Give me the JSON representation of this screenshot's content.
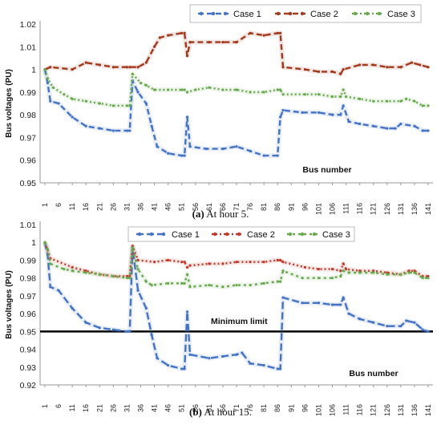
{
  "chart_data": [
    {
      "type": "line",
      "ylabel": "Bus voltages (PU)",
      "xlabel": "Bus number",
      "ylim": [
        0.95,
        1.02
      ],
      "yticks": [
        "0.95",
        "0.96",
        "0.97",
        "0.98",
        "0.99",
        "1",
        "1.01",
        "1.02"
      ],
      "xlim": [
        1,
        141
      ],
      "xticks": [
        "1",
        "6",
        "11",
        "16",
        "21",
        "26",
        "31",
        "36",
        "41",
        "46",
        "51",
        "56",
        "61",
        "66",
        "71",
        "76",
        "81",
        "86",
        "91",
        "96",
        "101",
        "106",
        "111",
        "116",
        "121",
        "126",
        "131",
        "136",
        "141"
      ],
      "grid": false,
      "legend": "top",
      "caption_prefix": "(a)",
      "caption_text": " At hour 5.",
      "series": [
        {
          "name": "Case 1",
          "color": "#4472c4",
          "dash": "7,4",
          "points": [
            [
              1,
              1.0
            ],
            [
              2,
              0.994
            ],
            [
              3,
              0.986
            ],
            [
              6,
              0.985
            ],
            [
              11,
              0.979
            ],
            [
              16,
              0.975
            ],
            [
              21,
              0.974
            ],
            [
              26,
              0.973
            ],
            [
              31,
              0.973
            ],
            [
              32,
              0.973
            ],
            [
              33,
              0.995
            ],
            [
              35,
              0.99
            ],
            [
              38,
              0.985
            ],
            [
              40,
              0.975
            ],
            [
              42,
              0.966
            ],
            [
              46,
              0.963
            ],
            [
              51,
              0.962
            ],
            [
              52,
              0.962
            ],
            [
              53,
              0.979
            ],
            [
              54,
              0.966
            ],
            [
              60,
              0.965
            ],
            [
              66,
              0.965
            ],
            [
              71,
              0.966
            ],
            [
              76,
              0.964
            ],
            [
              81,
              0.962
            ],
            [
              86,
              0.962
            ],
            [
              87,
              0.979
            ],
            [
              88,
              0.982
            ],
            [
              95,
              0.981
            ],
            [
              101,
              0.981
            ],
            [
              106,
              0.98
            ],
            [
              109,
              0.98
            ],
            [
              110,
              0.984
            ],
            [
              112,
              0.977
            ],
            [
              116,
              0.976
            ],
            [
              121,
              0.975
            ],
            [
              126,
              0.974
            ],
            [
              129,
              0.974
            ],
            [
              131,
              0.976
            ],
            [
              136,
              0.975
            ],
            [
              139,
              0.973
            ],
            [
              141,
              0.973
            ]
          ]
        },
        {
          "name": "Case 2",
          "color": "#a0391e",
          "dash": "7,4",
          "points": [
            [
              1,
              1.0
            ],
            [
              3,
              1.001
            ],
            [
              11,
              1.0
            ],
            [
              16,
              1.003
            ],
            [
              21,
              1.002
            ],
            [
              26,
              1.001
            ],
            [
              31,
              1.001
            ],
            [
              32,
              1.001
            ],
            [
              35,
              1.001
            ],
            [
              38,
              1.003
            ],
            [
              41,
              1.01
            ],
            [
              43,
              1.014
            ],
            [
              46,
              1.015
            ],
            [
              51,
              1.016
            ],
            [
              52,
              1.016
            ],
            [
              53,
              1.006
            ],
            [
              54,
              1.012
            ],
            [
              61,
              1.012
            ],
            [
              66,
              1.012
            ],
            [
              71,
              1.012
            ],
            [
              76,
              1.016
            ],
            [
              81,
              1.015
            ],
            [
              86,
              1.016
            ],
            [
              87,
              1.016
            ],
            [
              88,
              1.001
            ],
            [
              96,
              1.0
            ],
            [
              101,
              0.999
            ],
            [
              106,
              0.999
            ],
            [
              109,
              0.998
            ],
            [
              110,
              1.0
            ],
            [
              116,
              1.002
            ],
            [
              121,
              1.002
            ],
            [
              126,
              1.001
            ],
            [
              131,
              1.001
            ],
            [
              135,
              1.003
            ],
            [
              138,
              1.002
            ],
            [
              141,
              1.001
            ]
          ]
        },
        {
          "name": "Case 3",
          "color": "#6aa84f",
          "dash": "2,3",
          "points": [
            [
              1,
              1.0
            ],
            [
              2,
              0.996
            ],
            [
              4,
              0.992
            ],
            [
              8,
              0.989
            ],
            [
              11,
              0.987
            ],
            [
              16,
              0.986
            ],
            [
              21,
              0.985
            ],
            [
              26,
              0.984
            ],
            [
              31,
              0.984
            ],
            [
              32,
              0.984
            ],
            [
              33,
              0.998
            ],
            [
              36,
              0.994
            ],
            [
              38,
              0.993
            ],
            [
              41,
              0.991
            ],
            [
              46,
              0.991
            ],
            [
              51,
              0.991
            ],
            [
              52,
              0.991
            ],
            [
              53,
              0.99
            ],
            [
              56,
              0.991
            ],
            [
              61,
              0.992
            ],
            [
              66,
              0.991
            ],
            [
              71,
              0.991
            ],
            [
              76,
              0.99
            ],
            [
              81,
              0.99
            ],
            [
              86,
              0.991
            ],
            [
              87,
              0.991
            ],
            [
              88,
              0.989
            ],
            [
              96,
              0.989
            ],
            [
              101,
              0.989
            ],
            [
              106,
              0.988
            ],
            [
              109,
              0.988
            ],
            [
              110,
              0.991
            ],
            [
              111,
              0.988
            ],
            [
              116,
              0.987
            ],
            [
              121,
              0.986
            ],
            [
              126,
              0.986
            ],
            [
              131,
              0.986
            ],
            [
              133,
              0.987
            ],
            [
              136,
              0.986
            ],
            [
              139,
              0.984
            ],
            [
              141,
              0.984
            ]
          ]
        }
      ]
    },
    {
      "type": "line",
      "ylabel": "Bus voltages (PU)",
      "xlabel": "Bus number",
      "ylim": [
        0.92,
        1.01
      ],
      "yticks": [
        "0.92",
        "0.93",
        "0.94",
        "0.95",
        "0.96",
        "0.97",
        "0.98",
        "0.99",
        "1",
        "1.01"
      ],
      "xlim": [
        1,
        141
      ],
      "xticks": [
        "1",
        "6",
        "11",
        "16",
        "21",
        "26",
        "31",
        "36",
        "41",
        "46",
        "51",
        "56",
        "61",
        "66",
        "71",
        "76",
        "81",
        "86",
        "91",
        "96",
        "101",
        "106",
        "111",
        "116",
        "121",
        "126",
        "131",
        "136",
        "141"
      ],
      "grid": false,
      "legend": "top",
      "annotation": "Minimum limit",
      "limit_value": 0.95,
      "caption_prefix": "(b)",
      "caption_text": " At hour 15.",
      "series": [
        {
          "name": "Case 1",
          "color": "#4472c4",
          "dash": "9,4",
          "points": [
            [
              1,
              1.0
            ],
            [
              2,
              0.993
            ],
            [
              3,
              0.975
            ],
            [
              6,
              0.973
            ],
            [
              11,
              0.963
            ],
            [
              16,
              0.955
            ],
            [
              21,
              0.952
            ],
            [
              26,
              0.951
            ],
            [
              31,
              0.95
            ],
            [
              32,
              0.95
            ],
            [
              33,
              0.997
            ],
            [
              35,
              0.973
            ],
            [
              38,
              0.963
            ],
            [
              40,
              0.948
            ],
            [
              42,
              0.935
            ],
            [
              46,
              0.931
            ],
            [
              51,
              0.929
            ],
            [
              52,
              0.929
            ],
            [
              53,
              0.961
            ],
            [
              54,
              0.937
            ],
            [
              61,
              0.935
            ],
            [
              66,
              0.936
            ],
            [
              71,
              0.937
            ],
            [
              73,
              0.938
            ],
            [
              76,
              0.932
            ],
            [
              81,
              0.931
            ],
            [
              86,
              0.929
            ],
            [
              87,
              0.929
            ],
            [
              88,
              0.969
            ],
            [
              95,
              0.966
            ],
            [
              101,
              0.966
            ],
            [
              106,
              0.965
            ],
            [
              109,
              0.965
            ],
            [
              110,
              0.969
            ],
            [
              112,
              0.96
            ],
            [
              116,
              0.957
            ],
            [
              121,
              0.955
            ],
            [
              126,
              0.953
            ],
            [
              131,
              0.953
            ],
            [
              133,
              0.956
            ],
            [
              136,
              0.955
            ],
            [
              139,
              0.951
            ],
            [
              141,
              0.95
            ]
          ]
        },
        {
          "name": "Case 2",
          "color": "#c0392b",
          "dash": "2,3",
          "points": [
            [
              1,
              1.0
            ],
            [
              3,
              0.991
            ],
            [
              11,
              0.986
            ],
            [
              16,
              0.984
            ],
            [
              21,
              0.982
            ],
            [
              26,
              0.981
            ],
            [
              31,
              0.981
            ],
            [
              32,
              0.981
            ],
            [
              33,
              0.998
            ],
            [
              35,
              0.99
            ],
            [
              41,
              0.989
            ],
            [
              46,
              0.99
            ],
            [
              51,
              0.989
            ],
            [
              52,
              0.989
            ],
            [
              53,
              0.986
            ],
            [
              54,
              0.987
            ],
            [
              61,
              0.988
            ],
            [
              66,
              0.988
            ],
            [
              71,
              0.989
            ],
            [
              76,
              0.989
            ],
            [
              81,
              0.989
            ],
            [
              86,
              0.99
            ],
            [
              87,
              0.99
            ],
            [
              88,
              0.989
            ],
            [
              96,
              0.986
            ],
            [
              101,
              0.985
            ],
            [
              106,
              0.985
            ],
            [
              109,
              0.984
            ],
            [
              110,
              0.988
            ],
            [
              111,
              0.985
            ],
            [
              116,
              0.984
            ],
            [
              121,
              0.984
            ],
            [
              126,
              0.983
            ],
            [
              131,
              0.982
            ],
            [
              134,
              0.984
            ],
            [
              136,
              0.984
            ],
            [
              139,
              0.981
            ],
            [
              141,
              0.981
            ]
          ]
        },
        {
          "name": "Case 3",
          "color": "#6aa84f",
          "dash": "3,4",
          "points": [
            [
              1,
              1.0
            ],
            [
              2,
              0.996
            ],
            [
              3,
              0.988
            ],
            [
              8,
              0.985
            ],
            [
              11,
              0.984
            ],
            [
              16,
              0.983
            ],
            [
              21,
              0.982
            ],
            [
              26,
              0.981
            ],
            [
              31,
              0.98
            ],
            [
              32,
              0.98
            ],
            [
              33,
              0.997
            ],
            [
              35,
              0.985
            ],
            [
              38,
              0.978
            ],
            [
              40,
              0.976
            ],
            [
              46,
              0.977
            ],
            [
              51,
              0.977
            ],
            [
              52,
              0.977
            ],
            [
              53,
              0.982
            ],
            [
              54,
              0.975
            ],
            [
              61,
              0.976
            ],
            [
              66,
              0.975
            ],
            [
              71,
              0.976
            ],
            [
              76,
              0.976
            ],
            [
              81,
              0.977
            ],
            [
              86,
              0.978
            ],
            [
              87,
              0.978
            ],
            [
              88,
              0.984
            ],
            [
              95,
              0.98
            ],
            [
              101,
              0.98
            ],
            [
              106,
              0.98
            ],
            [
              109,
              0.981
            ],
            [
              110,
              0.984
            ],
            [
              112,
              0.983
            ],
            [
              116,
              0.983
            ],
            [
              121,
              0.983
            ],
            [
              126,
              0.982
            ],
            [
              131,
              0.982
            ],
            [
              134,
              0.983
            ],
            [
              136,
              0.983
            ],
            [
              139,
              0.98
            ],
            [
              141,
              0.98
            ]
          ]
        }
      ]
    }
  ]
}
